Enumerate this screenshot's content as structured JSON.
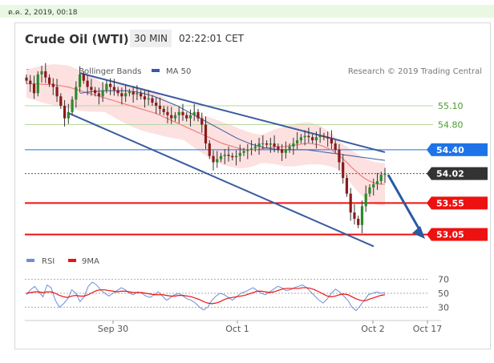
{
  "header": {
    "date_text": "ต.ค. 2, 2019, 00:18",
    "title": "Crude Oil (WTI)",
    "timeframe": "30 MIN",
    "time": "02:22:01 CET"
  },
  "legend": {
    "ma20_bb": "MA 20 + Bollinger Bands",
    "ma50": "MA 50",
    "source": "Research © 2019 Trading Central",
    "colors": {
      "ma20": "#f08080",
      "bands": "#fde0e0",
      "ma50": "#3a5aa0"
    }
  },
  "chart_data": {
    "type": "candlestick",
    "y_range": [
      52.7,
      55.7
    ],
    "x_ticks": [
      "Sep 30",
      "Oct 1",
      "Oct 2",
      "Oct 17"
    ],
    "levels": [
      {
        "label": "55.10",
        "value": 55.1,
        "style": "green-line",
        "color": "#4a9a2c"
      },
      {
        "label": "54.80",
        "value": 54.8,
        "style": "green-line",
        "color": "#4a9a2c"
      },
      {
        "label": "54.40",
        "value": 54.4,
        "style": "blue-tag",
        "color": "#1e73e8"
      },
      {
        "label": "54.02",
        "value": 54.02,
        "style": "dark-tag",
        "color": "#333333"
      },
      {
        "label": "53.55",
        "value": 53.55,
        "style": "red-tag",
        "color": "#ee1111"
      },
      {
        "label": "53.05",
        "value": 53.05,
        "style": "red-tag",
        "color": "#ee1111"
      }
    ],
    "close": [
      55.5,
      55.45,
      55.3,
      55.6,
      55.65,
      55.55,
      55.45,
      55.4,
      55.25,
      55.1,
      54.9,
      55.0,
      55.2,
      55.4,
      55.6,
      55.5,
      55.4,
      55.35,
      55.3,
      55.25,
      55.35,
      55.45,
      55.4,
      55.35,
      55.3,
      55.25,
      55.3,
      55.32,
      55.28,
      55.3,
      55.25,
      55.2,
      55.22,
      55.15,
      55.1,
      55.05,
      55.0,
      54.95,
      54.9,
      54.95,
      55.0,
      54.95,
      54.9,
      54.95,
      55.0,
      54.9,
      54.8,
      54.5,
      54.3,
      54.2,
      54.25,
      54.3,
      54.32,
      54.3,
      54.28,
      54.3,
      54.35,
      54.38,
      54.4,
      54.42,
      54.45,
      54.5,
      54.5,
      54.48,
      54.5,
      54.45,
      54.4,
      54.35,
      54.4,
      54.45,
      54.5,
      54.55,
      54.6,
      54.62,
      54.6,
      54.55,
      54.6,
      54.62,
      54.6,
      54.58,
      54.5,
      54.4,
      54.2,
      53.95,
      53.7,
      53.4,
      53.3,
      53.2,
      53.5,
      53.7,
      53.8,
      53.85,
      53.9,
      54.0,
      54.02
    ],
    "ma20": [
      55.45,
      55.45,
      55.45,
      55.45,
      55.44,
      55.44,
      55.44,
      55.43,
      55.42,
      55.41,
      55.4,
      55.38,
      55.36,
      55.34,
      55.32,
      55.3,
      55.28,
      55.26,
      55.24,
      55.22,
      55.2,
      55.18,
      55.16,
      55.14,
      55.12,
      55.1,
      55.08,
      55.06,
      55.04,
      55.02,
      55.0,
      54.98,
      54.95,
      54.92,
      54.89,
      54.86,
      54.83,
      54.8,
      54.77,
      54.74,
      54.71,
      54.68,
      54.65,
      54.62,
      54.59,
      54.56,
      54.53,
      54.5,
      54.48,
      54.46,
      54.44,
      54.42,
      54.41,
      54.4,
      54.4,
      54.4,
      54.41,
      54.42,
      54.43,
      54.44,
      54.45,
      54.45,
      54.45,
      54.46,
      54.47,
      54.48,
      54.49,
      54.5,
      54.5,
      54.49,
      54.48,
      54.46,
      54.43,
      54.4,
      54.36,
      54.31,
      54.25,
      54.19,
      54.12,
      54.06,
      54.0,
      53.95,
      53.91,
      53.88,
      53.86,
      53.85,
      53.85
    ],
    "ma50": [
      55.3,
      55.31,
      55.32,
      55.33,
      55.33,
      55.34,
      55.34,
      55.34,
      55.34,
      55.34,
      55.34,
      55.33,
      55.32,
      55.31,
      55.29,
      55.27,
      55.25,
      55.22,
      55.19,
      55.16,
      55.13,
      55.1,
      55.06,
      55.02,
      54.98,
      54.94,
      54.9,
      54.86,
      54.82,
      54.78,
      54.74,
      54.7,
      54.66,
      54.62,
      54.58,
      54.55,
      54.52,
      54.49,
      54.47,
      54.45,
      54.43,
      54.42,
      54.41,
      54.4,
      54.4,
      54.4,
      54.4,
      54.4,
      54.4,
      54.4,
      54.39,
      54.38,
      54.37,
      54.36,
      54.35,
      54.34,
      54.33,
      54.32,
      54.31,
      54.3,
      54.29,
      54.28,
      54.27,
      54.26,
      54.25,
      54.24,
      54.23
    ],
    "rsi": {
      "label": "RSI",
      "ma_label": "9MA",
      "levels": [
        70,
        50,
        30
      ],
      "rsi_values": [
        48,
        55,
        60,
        52,
        45,
        62,
        58,
        40,
        30,
        35,
        42,
        55,
        50,
        38,
        45,
        60,
        66,
        62,
        55,
        50,
        46,
        50,
        54,
        58,
        55,
        50,
        48,
        52,
        50,
        46,
        44,
        48,
        52,
        46,
        40,
        44,
        48,
        50,
        46,
        42,
        40,
        36,
        30,
        26,
        30,
        40,
        46,
        50,
        48,
        44,
        40,
        45,
        50,
        52,
        55,
        58,
        54,
        50,
        48,
        52,
        56,
        60,
        58,
        54,
        55,
        58,
        60,
        62,
        58,
        52,
        46,
        40,
        36,
        42,
        50,
        56,
        52,
        46,
        40,
        30,
        25,
        32,
        40,
        48,
        50,
        52,
        50,
        51
      ],
      "ma_values": [
        50,
        51,
        52,
        52,
        51,
        52,
        52,
        50,
        47,
        45,
        44,
        46,
        47,
        46,
        46,
        48,
        51,
        54,
        55,
        55,
        54,
        53,
        52,
        53,
        53,
        52,
        51,
        51,
        51,
        50,
        49,
        48,
        48,
        48,
        47,
        46,
        46,
        47,
        47,
        46,
        45,
        43,
        41,
        38,
        36,
        35,
        36,
        38,
        41,
        43,
        44,
        45,
        46,
        47,
        49,
        51,
        53,
        53,
        52,
        51,
        52,
        54,
        56,
        57,
        57,
        57,
        57,
        58,
        58,
        57,
        55,
        52,
        49,
        46,
        45,
        46,
        48,
        49,
        48,
        45,
        42,
        40,
        39,
        41,
        43,
        45,
        47,
        48
      ]
    }
  }
}
